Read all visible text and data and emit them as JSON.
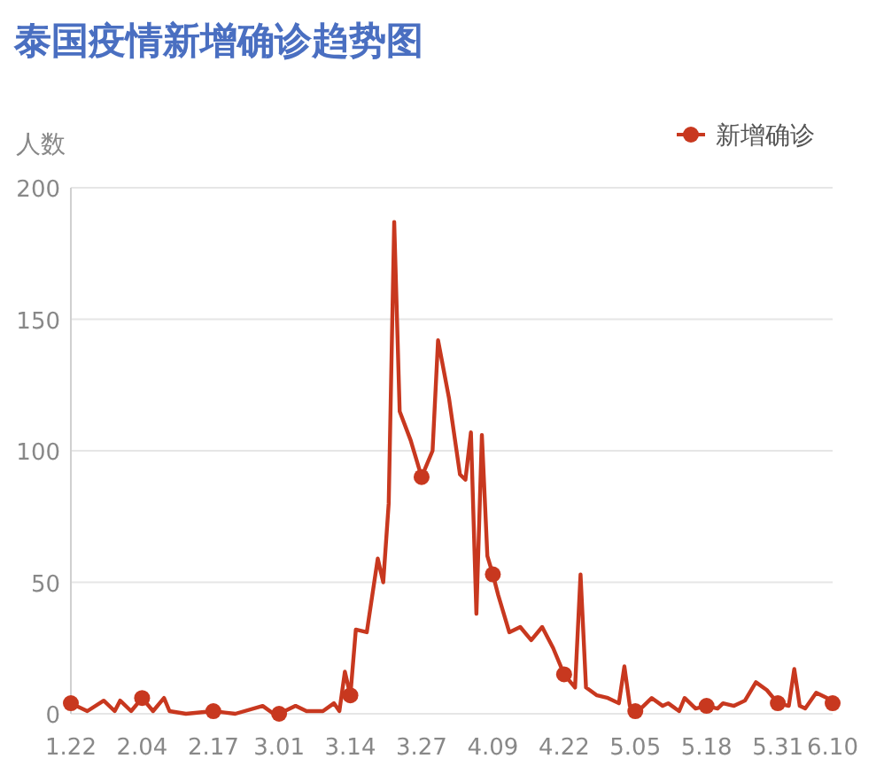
{
  "chart_data": {
    "type": "line",
    "title": "泰国疫情新增确诊趋势图",
    "ylabel": "人数",
    "x": [
      "--01-22",
      "--01-25",
      "--01-28",
      "--01-30",
      "--01-31",
      "--02-02",
      "--02-04",
      "--02-06",
      "--02-08",
      "--02-09",
      "--02-12",
      "--02-17",
      "--02-21",
      "--02-26",
      "--02-28",
      "--03-01",
      "--03-04",
      "--03-06",
      "--03-09",
      "--03-11",
      "--03-12",
      "--03-13",
      "--03-14",
      "--03-15",
      "--03-17",
      "--03-19",
      "--03-20",
      "--03-21",
      "--03-22",
      "--03-23",
      "--03-25",
      "--03-27",
      "--03-29",
      "--03-30",
      "--04-01",
      "--04-03",
      "--04-04",
      "--04-05",
      "--04-06",
      "--04-07",
      "--04-08",
      "--04-09",
      "--04-10",
      "--04-12",
      "--04-14",
      "--04-16",
      "--04-18",
      "--04-20",
      "--04-22",
      "--04-24",
      "--04-25",
      "--04-26",
      "--04-28",
      "--04-30",
      "--05-02",
      "--05-03",
      "--05-04",
      "--05-05",
      "--05-06",
      "--05-08",
      "--05-10",
      "--05-11",
      "--05-13",
      "--05-14",
      "--05-16",
      "--05-18",
      "--05-20",
      "--05-21",
      "--05-23",
      "--05-25",
      "--05-27",
      "--05-29",
      "--05-31",
      "--06-02",
      "--06-03",
      "--06-04",
      "--06-05",
      "--06-07",
      "--06-09",
      "--06-10"
    ],
    "series": [
      {
        "name": "新增确诊",
        "color": "#c8381f",
        "values": [
          4,
          1,
          5,
          1,
          5,
          1,
          6,
          1,
          6,
          1,
          0,
          1,
          0,
          3,
          0,
          0,
          3,
          1,
          1,
          4,
          1,
          16,
          7,
          32,
          31,
          59,
          50,
          80,
          187,
          115,
          104,
          90,
          100,
          142,
          120,
          91,
          89,
          107,
          38,
          106,
          60,
          53,
          45,
          31,
          33,
          28,
          33,
          25,
          15,
          10,
          53,
          10,
          7,
          6,
          4,
          18,
          3,
          1,
          2,
          6,
          3,
          4,
          1,
          6,
          2,
          3,
          2,
          4,
          3,
          5,
          12,
          9,
          4,
          3,
          17,
          3,
          2,
          8,
          6,
          4
        ]
      },
      {
        "type": "scatter",
        "color": "#c8381f",
        "x": [
          "--01-22",
          "--02-04",
          "--02-17",
          "--03-01",
          "--03-14",
          "--03-27",
          "--04-09",
          "--04-22",
          "--05-05",
          "--05-18",
          "--05-31",
          "--06-10"
        ],
        "values": [
          4,
          6,
          1,
          0,
          7,
          90,
          53,
          15,
          1,
          3,
          4,
          4
        ]
      }
    ],
    "xlim": [
      "--01-22",
      "--06-10"
    ],
    "xticks": [
      {
        "value": "--01-22",
        "label": "1.22"
      },
      {
        "value": "--02-04",
        "label": "2.04"
      },
      {
        "value": "--02-17",
        "label": "2.17"
      },
      {
        "value": "--03-01",
        "label": "3.01"
      },
      {
        "value": "--03-14",
        "label": "3.14"
      },
      {
        "value": "--03-27",
        "label": "3.27"
      },
      {
        "value": "--04-09",
        "label": "4.09"
      },
      {
        "value": "--04-22",
        "label": "4.22"
      },
      {
        "value": "--05-05",
        "label": "5.05"
      },
      {
        "value": "--05-18",
        "label": "5.18"
      },
      {
        "value": "--05-31",
        "label": "5.31"
      },
      {
        "value": "--06-10",
        "label": "6.10"
      }
    ],
    "ylim": [
      0,
      200
    ],
    "yticks": [
      0,
      50,
      100,
      150,
      200
    ],
    "grid": "y",
    "legend": "top right",
    "line_style": "solid"
  }
}
